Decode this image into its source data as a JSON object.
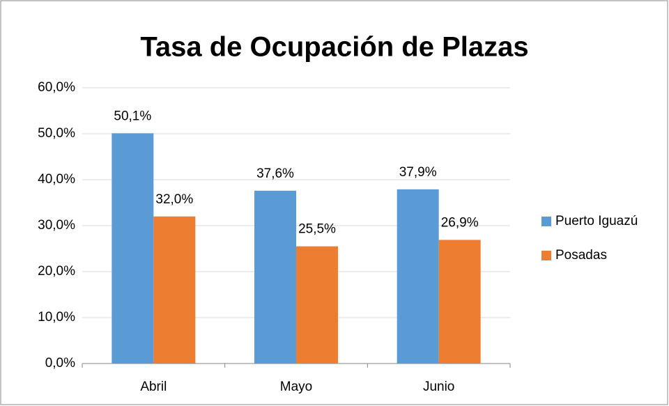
{
  "chart_data": {
    "type": "bar",
    "title": "Tasa de Ocupación de Plazas",
    "categories": [
      "Abril",
      "Mayo",
      "Junio"
    ],
    "series": [
      {
        "name": "Puerto Iguazú",
        "color": "#5b9bd5",
        "values": [
          50.1,
          37.6,
          37.9
        ],
        "value_labels": [
          "50,1%",
          "37,6%",
          "37,9%"
        ]
      },
      {
        "name": "Posadas",
        "color": "#ed7d31",
        "values": [
          32.0,
          25.5,
          26.9
        ],
        "value_labels": [
          "32,0%",
          "25,5%",
          "26,9%"
        ]
      }
    ],
    "ylim": [
      0,
      60
    ],
    "yticks": [
      {
        "value": 0,
        "label": "0,0%"
      },
      {
        "value": 10,
        "label": "10,0%"
      },
      {
        "value": 20,
        "label": "20,0%"
      },
      {
        "value": 30,
        "label": "30,0%"
      },
      {
        "value": 40,
        "label": "40,0%"
      },
      {
        "value": 50,
        "label": "50,0%"
      },
      {
        "value": 60,
        "label": "60,0%"
      }
    ],
    "grid": true,
    "legend": "right"
  }
}
